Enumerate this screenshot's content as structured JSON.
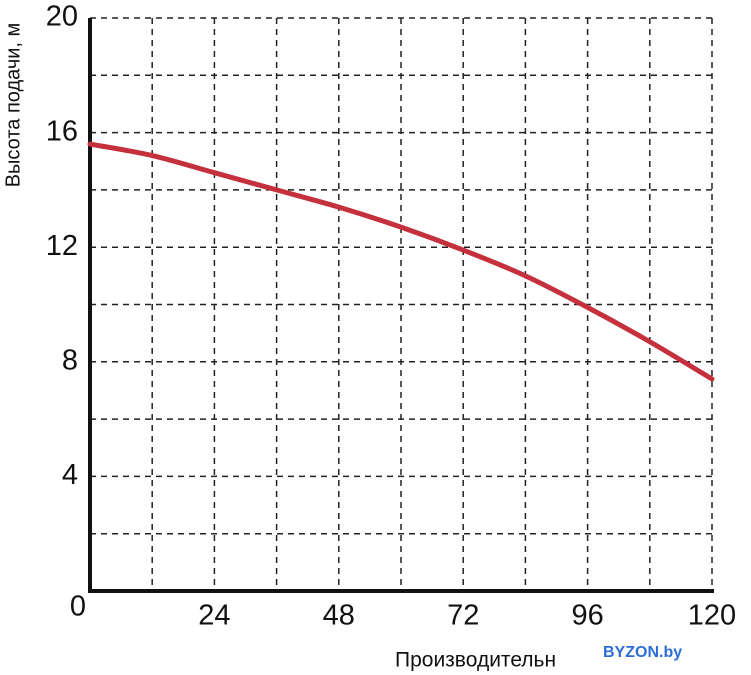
{
  "chart_data": {
    "type": "line",
    "y_label": "Высота подачи, м",
    "x_label": "Производительн",
    "watermark": "BYZON.by",
    "x": [
      0,
      12,
      24,
      36,
      48,
      60,
      72,
      84,
      96,
      108,
      120
    ],
    "series": [
      {
        "color": "#c4313c",
        "values": [
          15.6,
          15.2,
          14.6,
          14.0,
          13.4,
          12.7,
          11.9,
          11.0,
          9.9,
          8.7,
          7.4
        ]
      }
    ],
    "xlim": [
      0,
      120
    ],
    "xticks": [
      0,
      24,
      48,
      72,
      96,
      120
    ],
    "xminor": [
      12,
      36,
      60,
      84,
      108
    ],
    "ylim": [
      0,
      20
    ],
    "yticks": [
      4,
      8,
      12,
      16,
      20
    ],
    "yminor": [
      2,
      6,
      10,
      14,
      18
    ],
    "grid": true
  }
}
